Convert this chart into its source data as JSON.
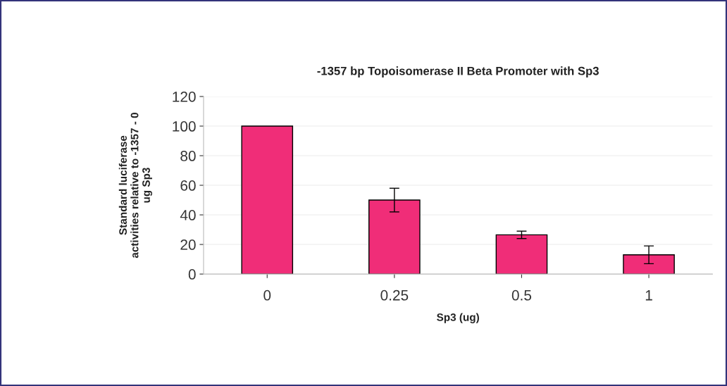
{
  "chart_data": {
    "type": "bar",
    "title": "-1357 bp Topoisomerase II Beta Promoter with Sp3",
    "xlabel": "Sp3 (ug)",
    "ylabel": "Standard luciferase\nactivities relative to -1357 - 0\nug Sp3",
    "categories": [
      "0",
      "0.25",
      "0.5",
      "1"
    ],
    "values": [
      100,
      50,
      26.5,
      13
    ],
    "errors": [
      null,
      8,
      2.5,
      6
    ],
    "color": "#f02d78",
    "ylim": [
      0,
      120
    ],
    "yticks": [
      0,
      20,
      40,
      60,
      80,
      100,
      120
    ],
    "grid": "y"
  }
}
